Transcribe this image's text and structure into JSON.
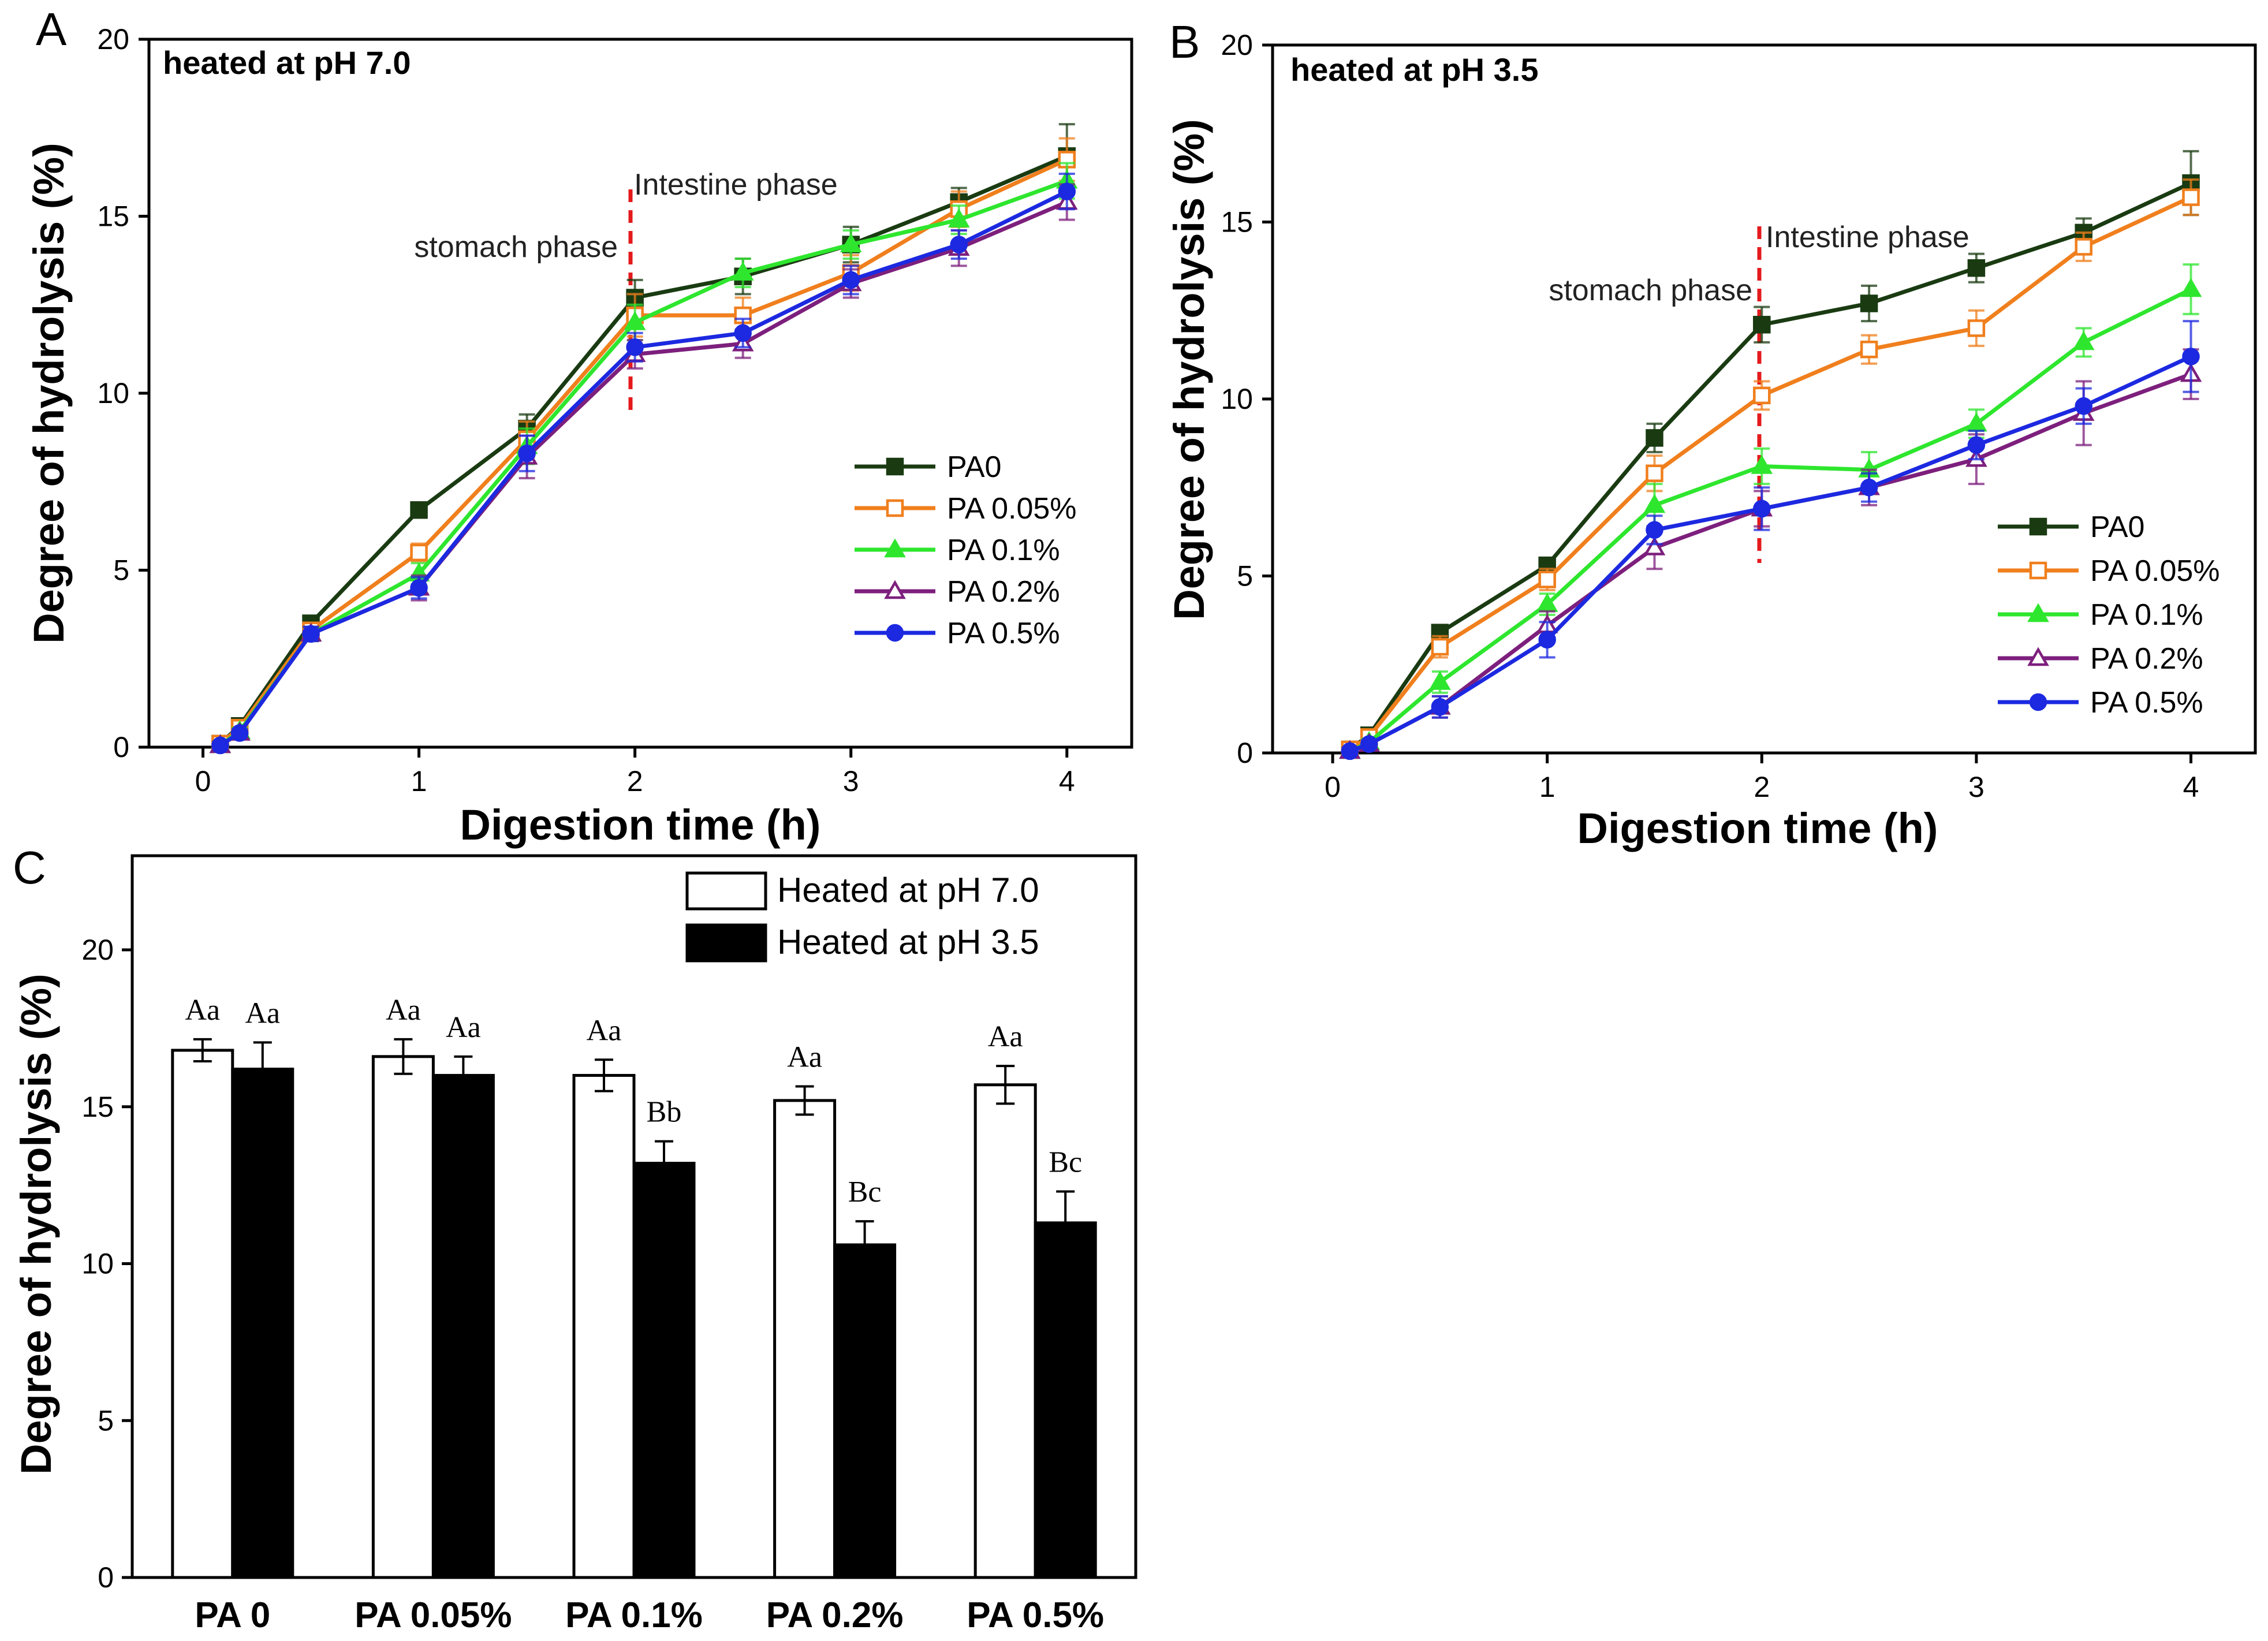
{
  "chart_data": [
    {
      "panel": "A",
      "type": "line",
      "title": "heated at pH 7.0",
      "xlabel": "Digestion time (h)",
      "ylabel": "Degree of hydrolysis (%)",
      "xlim": [
        -0.25,
        4.3
      ],
      "ylim": [
        0,
        20
      ],
      "xticks": [
        0,
        1,
        2,
        3,
        4
      ],
      "yticks": [
        0,
        5,
        10,
        15,
        20
      ],
      "annotations": {
        "left": "stomach phase",
        "right": "Intestine phase",
        "divider_x": 2
      },
      "legend_position": "right",
      "series": [
        {
          "name": "PA0",
          "color": "#1a3b12",
          "marker": "square-filled",
          "x": [
            0.08,
            0.17,
            0.5,
            1,
            1.5,
            2,
            2.5,
            3,
            3.5,
            4
          ],
          "y": [
            0.1,
            0.6,
            3.5,
            6.7,
            9.0,
            12.7,
            13.3,
            14.2,
            15.4,
            16.7
          ],
          "err": [
            0.1,
            0.15,
            0.2,
            0.2,
            0.4,
            0.5,
            0.5,
            0.5,
            0.4,
            0.9
          ]
        },
        {
          "name": "PA 0.05%",
          "color": "#f07f1d",
          "marker": "square-open",
          "x": [
            0.08,
            0.17,
            0.5,
            1,
            1.5,
            2,
            2.5,
            3,
            3.5,
            4
          ],
          "y": [
            0.1,
            0.55,
            3.3,
            5.5,
            8.7,
            12.2,
            12.2,
            13.4,
            15.2,
            16.6
          ],
          "err": [
            0.1,
            0.15,
            0.2,
            0.25,
            0.5,
            0.6,
            0.5,
            0.5,
            0.5,
            0.6
          ]
        },
        {
          "name": "PA 0.1%",
          "color": "#2ee62e",
          "marker": "triangle-filled",
          "x": [
            0.08,
            0.17,
            0.5,
            1,
            1.5,
            2,
            2.5,
            3,
            3.5,
            4
          ],
          "y": [
            0.05,
            0.45,
            3.2,
            4.9,
            8.5,
            12.0,
            13.4,
            14.2,
            14.9,
            16.0
          ],
          "err": [
            0.1,
            0.1,
            0.2,
            0.3,
            0.5,
            0.5,
            0.4,
            0.4,
            0.4,
            0.5
          ]
        },
        {
          "name": "PA 0.2%",
          "color": "#7d1f7d",
          "marker": "triangle-open",
          "x": [
            0.08,
            0.17,
            0.5,
            1,
            1.5,
            2,
            2.5,
            3,
            3.5,
            4
          ],
          "y": [
            0.05,
            0.4,
            3.2,
            4.5,
            8.2,
            11.1,
            11.4,
            13.1,
            14.1,
            15.4
          ],
          "err": [
            0.1,
            0.1,
            0.2,
            0.35,
            0.6,
            0.4,
            0.4,
            0.4,
            0.5,
            0.5
          ]
        },
        {
          "name": "PA 0.5%",
          "color": "#1c29e0",
          "marker": "circle-filled",
          "x": [
            0.08,
            0.17,
            0.5,
            1,
            1.5,
            2,
            2.5,
            3,
            3.5,
            4
          ],
          "y": [
            0.05,
            0.4,
            3.2,
            4.5,
            8.3,
            11.3,
            11.7,
            13.2,
            14.2,
            15.7
          ],
          "err": [
            0.1,
            0.1,
            0.2,
            0.3,
            0.5,
            0.4,
            0.4,
            0.4,
            0.4,
            0.5
          ]
        }
      ]
    },
    {
      "panel": "B",
      "type": "line",
      "title": "heated at pH 3.5",
      "xlabel": "Digestion time (h)",
      "ylabel": "Degree of hydrolysis (%)",
      "xlim": [
        -0.28,
        4.3
      ],
      "ylim": [
        0,
        20
      ],
      "xticks": [
        0,
        1,
        2,
        3,
        4
      ],
      "yticks": [
        0,
        5,
        10,
        15,
        20
      ],
      "annotations": {
        "left": "stomach phase",
        "right": "Intestine phase",
        "divider_x": 2
      },
      "legend_position": "right",
      "series": [
        {
          "name": "PA0",
          "color": "#1a3b12",
          "marker": "square-filled",
          "x": [
            0.08,
            0.17,
            0.5,
            1,
            1.5,
            2,
            2.5,
            3,
            3.5,
            4
          ],
          "y": [
            0.1,
            0.5,
            3.4,
            5.3,
            8.9,
            12.1,
            12.7,
            13.7,
            14.7,
            16.1
          ],
          "err": [
            0.1,
            0.15,
            0.2,
            0.2,
            0.4,
            0.5,
            0.5,
            0.4,
            0.4,
            0.9
          ]
        },
        {
          "name": "PA 0.05%",
          "color": "#f07f1d",
          "marker": "square-open",
          "x": [
            0.08,
            0.17,
            0.5,
            1,
            1.5,
            2,
            2.5,
            3,
            3.5,
            4
          ],
          "y": [
            0.1,
            0.45,
            3.0,
            4.9,
            7.9,
            10.1,
            11.4,
            12.0,
            14.3,
            15.7
          ],
          "err": [
            0.1,
            0.15,
            0.3,
            0.3,
            0.5,
            0.4,
            0.4,
            0.5,
            0.4,
            0.5
          ]
        },
        {
          "name": "PA 0.1%",
          "color": "#2ee62e",
          "marker": "triangle-filled",
          "x": [
            0.08,
            0.17,
            0.5,
            1,
            1.5,
            2,
            2.5,
            3,
            3.5,
            4
          ],
          "y": [
            0.05,
            0.3,
            2.0,
            4.2,
            7.0,
            8.1,
            8.0,
            9.3,
            11.6,
            13.1
          ],
          "err": [
            0.1,
            0.1,
            0.3,
            0.3,
            0.6,
            0.5,
            0.5,
            0.4,
            0.4,
            0.7
          ]
        },
        {
          "name": "PA 0.2%",
          "color": "#7d1f7d",
          "marker": "triangle-open",
          "x": [
            0.08,
            0.17,
            0.5,
            1,
            1.5,
            2,
            2.5,
            3,
            3.5,
            4
          ],
          "y": [
            0.05,
            0.25,
            1.3,
            3.6,
            5.8,
            6.9,
            7.5,
            8.3,
            9.6,
            10.7
          ],
          "err": [
            0.1,
            0.1,
            0.3,
            0.4,
            0.6,
            0.5,
            0.5,
            0.7,
            0.9,
            0.7
          ]
        },
        {
          "name": "PA 0.5%",
          "color": "#1c29e0",
          "marker": "circle-filled",
          "x": [
            0.08,
            0.17,
            0.5,
            1,
            1.5,
            2,
            2.5,
            3,
            3.5,
            4
          ],
          "y": [
            0.05,
            0.25,
            1.3,
            3.2,
            6.3,
            6.9,
            7.5,
            8.7,
            9.8,
            11.2
          ],
          "err": [
            0.1,
            0.1,
            0.3,
            0.5,
            0.4,
            0.6,
            0.4,
            0.4,
            0.5,
            1.0
          ]
        }
      ]
    },
    {
      "panel": "C",
      "type": "bar",
      "ylabel": "Degree of hydrolysis (%)",
      "ylim": [
        0,
        23
      ],
      "yticks": [
        0,
        5,
        10,
        15,
        20
      ],
      "categories": [
        "PA 0",
        "PA 0.05%",
        "PA 0.1%",
        "PA 0.2%",
        "PA 0.5%"
      ],
      "legend_position": "top-right",
      "series": [
        {
          "name": "Heated at pH 7.0",
          "fill": "#ffffff",
          "values": [
            16.8,
            16.6,
            16.0,
            15.2,
            15.7
          ],
          "err": [
            0.35,
            0.55,
            0.5,
            0.45,
            0.6
          ],
          "labels": [
            "Aa",
            "Aa",
            "Aa",
            "Aa",
            "Aa"
          ]
        },
        {
          "name": "Heated at pH 3.5",
          "fill": "#000000",
          "values": [
            16.2,
            16.0,
            13.2,
            10.6,
            11.3
          ],
          "err": [
            0.85,
            0.6,
            0.7,
            0.75,
            1.0
          ],
          "labels": [
            "Aa",
            "Aa",
            "Bb",
            "Bc",
            "Bc"
          ]
        }
      ]
    }
  ],
  "panel_labels": [
    "A",
    "B",
    "C"
  ]
}
